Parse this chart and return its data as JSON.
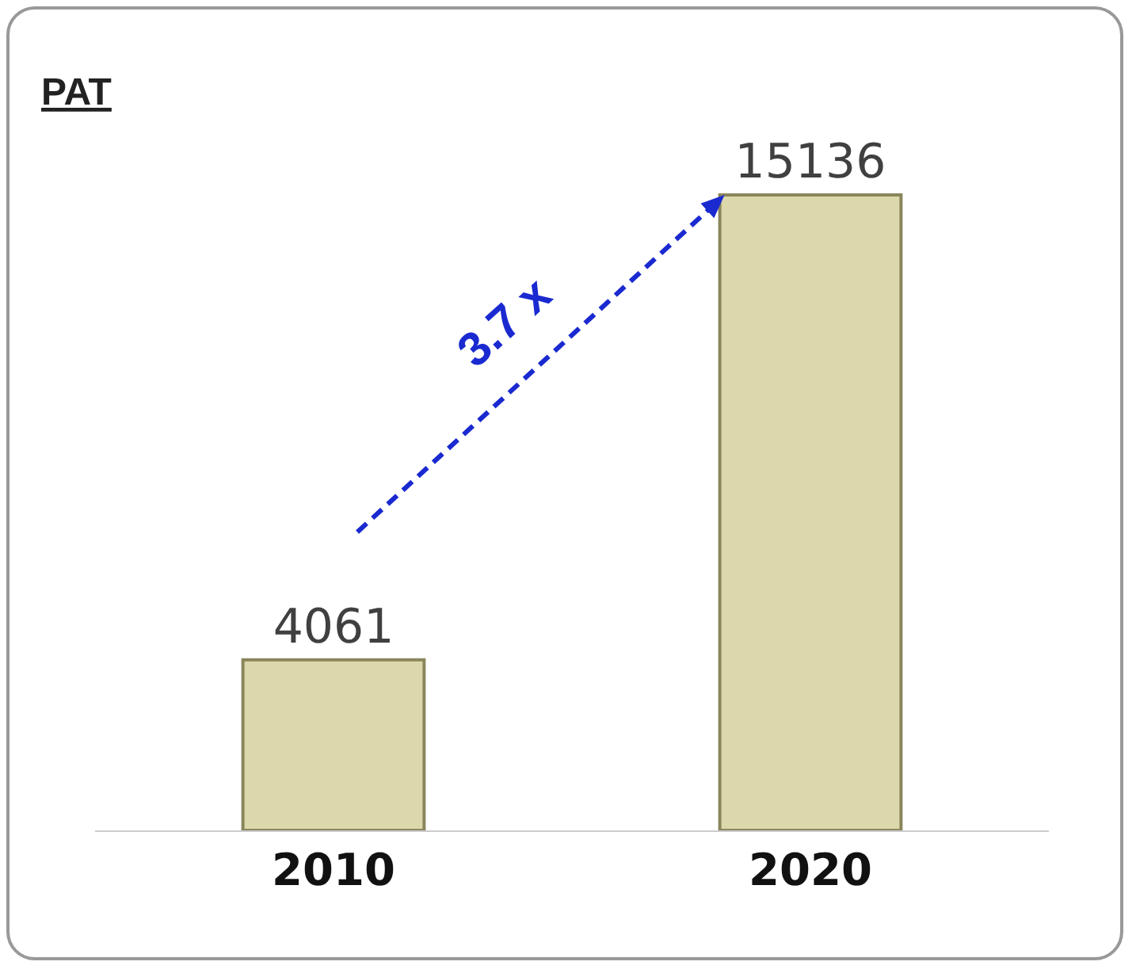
{
  "chart_data": {
    "type": "bar",
    "title": "PAT",
    "categories": [
      "2010",
      "2020"
    ],
    "values": [
      4061,
      15136
    ],
    "color": "#dcd8ac",
    "data_labels": true,
    "annotations": [
      "3.7 x"
    ],
    "grid": false,
    "legend": false
  }
}
